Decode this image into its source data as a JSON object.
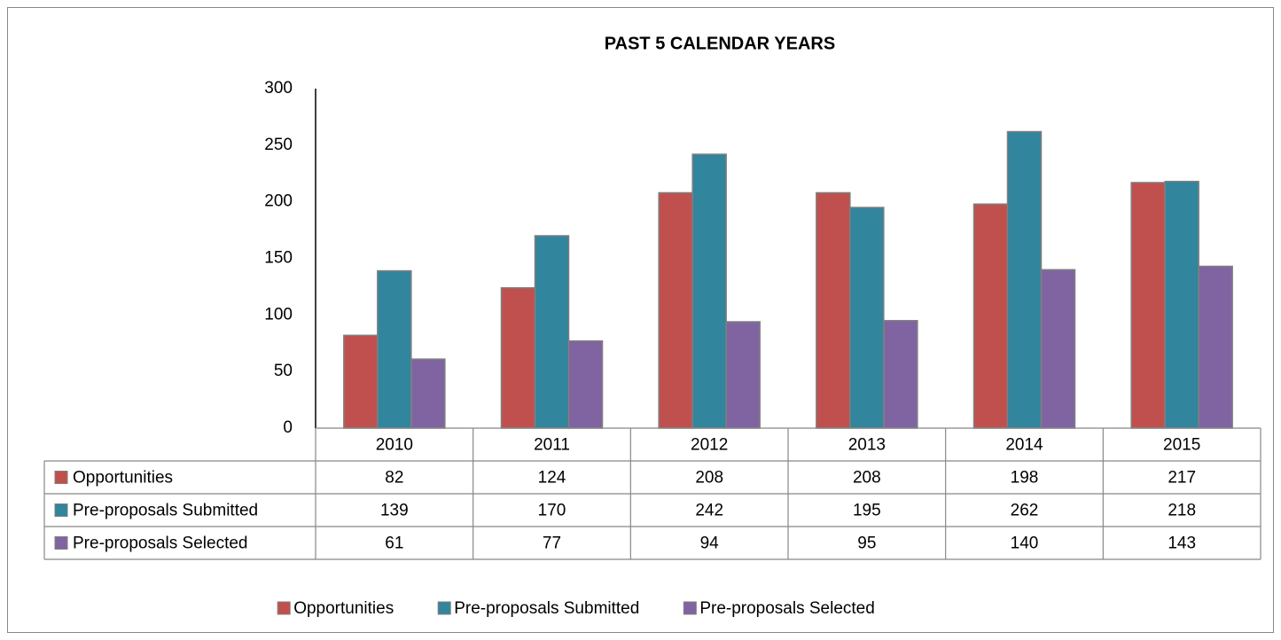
{
  "chart_data": {
    "type": "bar",
    "title": "PAST 5 CALENDAR YEARS",
    "categories": [
      "2010",
      "2011",
      "2012",
      "2013",
      "2014",
      "2015"
    ],
    "series": [
      {
        "name": "Opportunities",
        "color": "#c0504d",
        "values": [
          82,
          124,
          208,
          208,
          198,
          217
        ]
      },
      {
        "name": "Pre-proposals Submitted",
        "color": "#31859c",
        "values": [
          139,
          170,
          242,
          195,
          262,
          218
        ]
      },
      {
        "name": "Pre-proposals Selected",
        "color": "#8064a2",
        "values": [
          61,
          77,
          94,
          95,
          140,
          143
        ]
      }
    ],
    "ylim": [
      0,
      300
    ],
    "yticks": [
      0,
      50,
      100,
      150,
      200,
      250,
      300
    ],
    "grid": false,
    "legend": "bottom"
  }
}
